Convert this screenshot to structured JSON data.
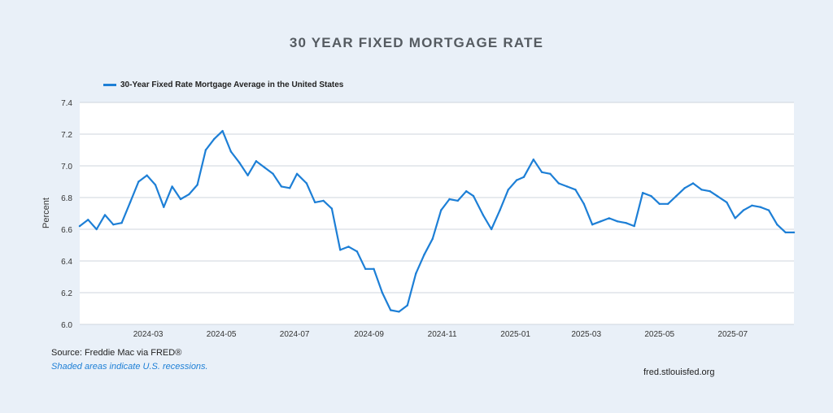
{
  "title": "30 YEAR FIXED MORTGAGE RATE",
  "source": "Source: Freddie Mac via FRED®",
  "note": "Shaded areas indicate U.S. recessions.",
  "credit": "fred.stlouisfed.org",
  "colors": {
    "line": "#1d7fd6",
    "background": "#e9f0f8",
    "plot_background": "#ffffff",
    "grid": "#cfd6de"
  },
  "chart_data": {
    "type": "line",
    "title": "30 YEAR FIXED MORTGAGE RATE",
    "xlabel": "",
    "ylabel": "Percent",
    "ylim": [
      6.0,
      7.4
    ],
    "yticks": [
      "6.0",
      "6.2",
      "6.4",
      "6.6",
      "6.8",
      "7.0",
      "7.2",
      "7.4"
    ],
    "xticks": [
      "2024-03",
      "2024-05",
      "2024-07",
      "2024-09",
      "2024-11",
      "2025-01",
      "2025-03",
      "2025-05",
      "2025-07"
    ],
    "xlim": [
      "2024-01-04",
      "2025-08-21"
    ],
    "grid": true,
    "legend": "top-left",
    "series": [
      {
        "name": "30-Year Fixed Rate Mortgage Average in the United States",
        "x": [
          "2024-01-04",
          "2024-01-11",
          "2024-01-18",
          "2024-01-25",
          "2024-02-01",
          "2024-02-08",
          "2024-02-15",
          "2024-02-22",
          "2024-02-29",
          "2024-03-07",
          "2024-03-14",
          "2024-03-21",
          "2024-03-28",
          "2024-04-04",
          "2024-04-11",
          "2024-04-18",
          "2024-04-25",
          "2024-05-02",
          "2024-05-09",
          "2024-05-16",
          "2024-05-23",
          "2024-05-30",
          "2024-06-06",
          "2024-06-13",
          "2024-06-20",
          "2024-06-27",
          "2024-07-03",
          "2024-07-11",
          "2024-07-18",
          "2024-07-25",
          "2024-08-01",
          "2024-08-08",
          "2024-08-15",
          "2024-08-22",
          "2024-08-29",
          "2024-09-05",
          "2024-09-12",
          "2024-09-19",
          "2024-09-26",
          "2024-10-03",
          "2024-10-10",
          "2024-10-17",
          "2024-10-24",
          "2024-10-31",
          "2024-11-07",
          "2024-11-14",
          "2024-11-21",
          "2024-11-27",
          "2024-12-05",
          "2024-12-12",
          "2024-12-19",
          "2024-12-26",
          "2025-01-02",
          "2025-01-08",
          "2025-01-16",
          "2025-01-23",
          "2025-01-30",
          "2025-02-06",
          "2025-02-13",
          "2025-02-20",
          "2025-02-27",
          "2025-03-06",
          "2025-03-13",
          "2025-03-20",
          "2025-03-27",
          "2025-04-03",
          "2025-04-10",
          "2025-04-17",
          "2025-04-24",
          "2025-05-01",
          "2025-05-08",
          "2025-05-15",
          "2025-05-22",
          "2025-05-29",
          "2025-06-05",
          "2025-06-12",
          "2025-06-18",
          "2025-06-26",
          "2025-07-03",
          "2025-07-10",
          "2025-07-17",
          "2025-07-24",
          "2025-07-31",
          "2025-08-07",
          "2025-08-14",
          "2025-08-21"
        ],
        "y": [
          6.62,
          6.66,
          6.6,
          6.69,
          6.63,
          6.64,
          6.77,
          6.9,
          6.94,
          6.88,
          6.74,
          6.87,
          6.79,
          6.82,
          6.88,
          7.1,
          7.17,
          7.22,
          7.09,
          7.02,
          6.94,
          7.03,
          6.99,
          6.95,
          6.87,
          6.86,
          6.95,
          6.89,
          6.77,
          6.78,
          6.73,
          6.47,
          6.49,
          6.46,
          6.35,
          6.35,
          6.2,
          6.09,
          6.08,
          6.12,
          6.32,
          6.44,
          6.54,
          6.72,
          6.79,
          6.78,
          6.84,
          6.81,
          6.69,
          6.6,
          6.72,
          6.85,
          6.91,
          6.93,
          7.04,
          6.96,
          6.95,
          6.89,
          6.87,
          6.85,
          6.76,
          6.63,
          6.65,
          6.67,
          6.65,
          6.64,
          6.62,
          6.83,
          6.81,
          6.76,
          6.76,
          6.81,
          6.86,
          6.89,
          6.85,
          6.84,
          6.81,
          6.77,
          6.67,
          6.72,
          6.75,
          6.74,
          6.72,
          6.63,
          6.58,
          6.58
        ]
      }
    ]
  }
}
